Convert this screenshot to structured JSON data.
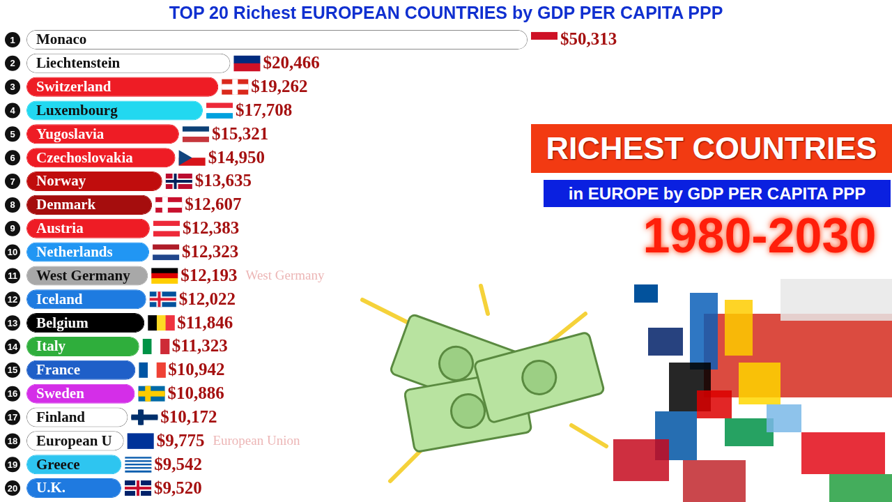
{
  "chart_data": {
    "type": "bar",
    "orientation": "horizontal",
    "title": "TOP 20 Richest EUROPEAN COUNTRIES by GDP PER CAPITA PPP",
    "categories": [
      "Monaco",
      "Liechtenstein",
      "Switzerland",
      "Luxembourg",
      "Yugoslavia",
      "Czechoslovakia",
      "Norway",
      "Denmark",
      "Austria",
      "Netherlands",
      "West Germany",
      "Iceland",
      "Belgium",
      "Italy",
      "France",
      "Sweden",
      "Finland",
      "European U",
      "Greece",
      "U.K."
    ],
    "values": [
      50313,
      20466,
      19262,
      17708,
      15321,
      14950,
      13635,
      12607,
      12383,
      12323,
      12193,
      12022,
      11846,
      11323,
      10942,
      10886,
      10172,
      9775,
      9542,
      9520
    ],
    "value_labels": [
      "$50,313",
      "$20,466",
      "$19,262",
      "$17,708",
      "$15,321",
      "$14,950",
      "$13,635",
      "$12,607",
      "$12,383",
      "$12,323",
      "$12,193",
      "$12,022",
      "$11,846",
      "$11,323",
      "$10,942",
      "$10,886",
      "$10,172",
      "$9,775",
      "$9,542",
      "$9,520"
    ],
    "colors": [
      "#ffffff",
      "#ffffff",
      "#ee1c25",
      "#22d8f0",
      "#ee1c25",
      "#ee1c25",
      "#c00d0d",
      "#a50d0d",
      "#ee1c25",
      "#2196f3",
      "#a8a8a8",
      "#1e7be0",
      "#000000",
      "#2fae3c",
      "#1f5fc8",
      "#d42ee8",
      "#ffffff",
      "#ffffff",
      "#2ec5f0",
      "#1f7ae0"
    ],
    "ranks": [
      1,
      2,
      3,
      4,
      5,
      6,
      7,
      8,
      9,
      10,
      11,
      12,
      13,
      14,
      15,
      16,
      17,
      18,
      19,
      20
    ],
    "annotations": [
      {
        "text": "West Germany",
        "category": "West Germany"
      },
      {
        "text": "European Union",
        "category": "European U"
      }
    ],
    "data_labels": true,
    "tick_labels": false,
    "grid": false
  },
  "panel": {
    "heading": "RICHEST COUNTRIES",
    "subheading": "in EUROPE by GDP PER CAPITA PPP",
    "period": "1980-2030"
  }
}
